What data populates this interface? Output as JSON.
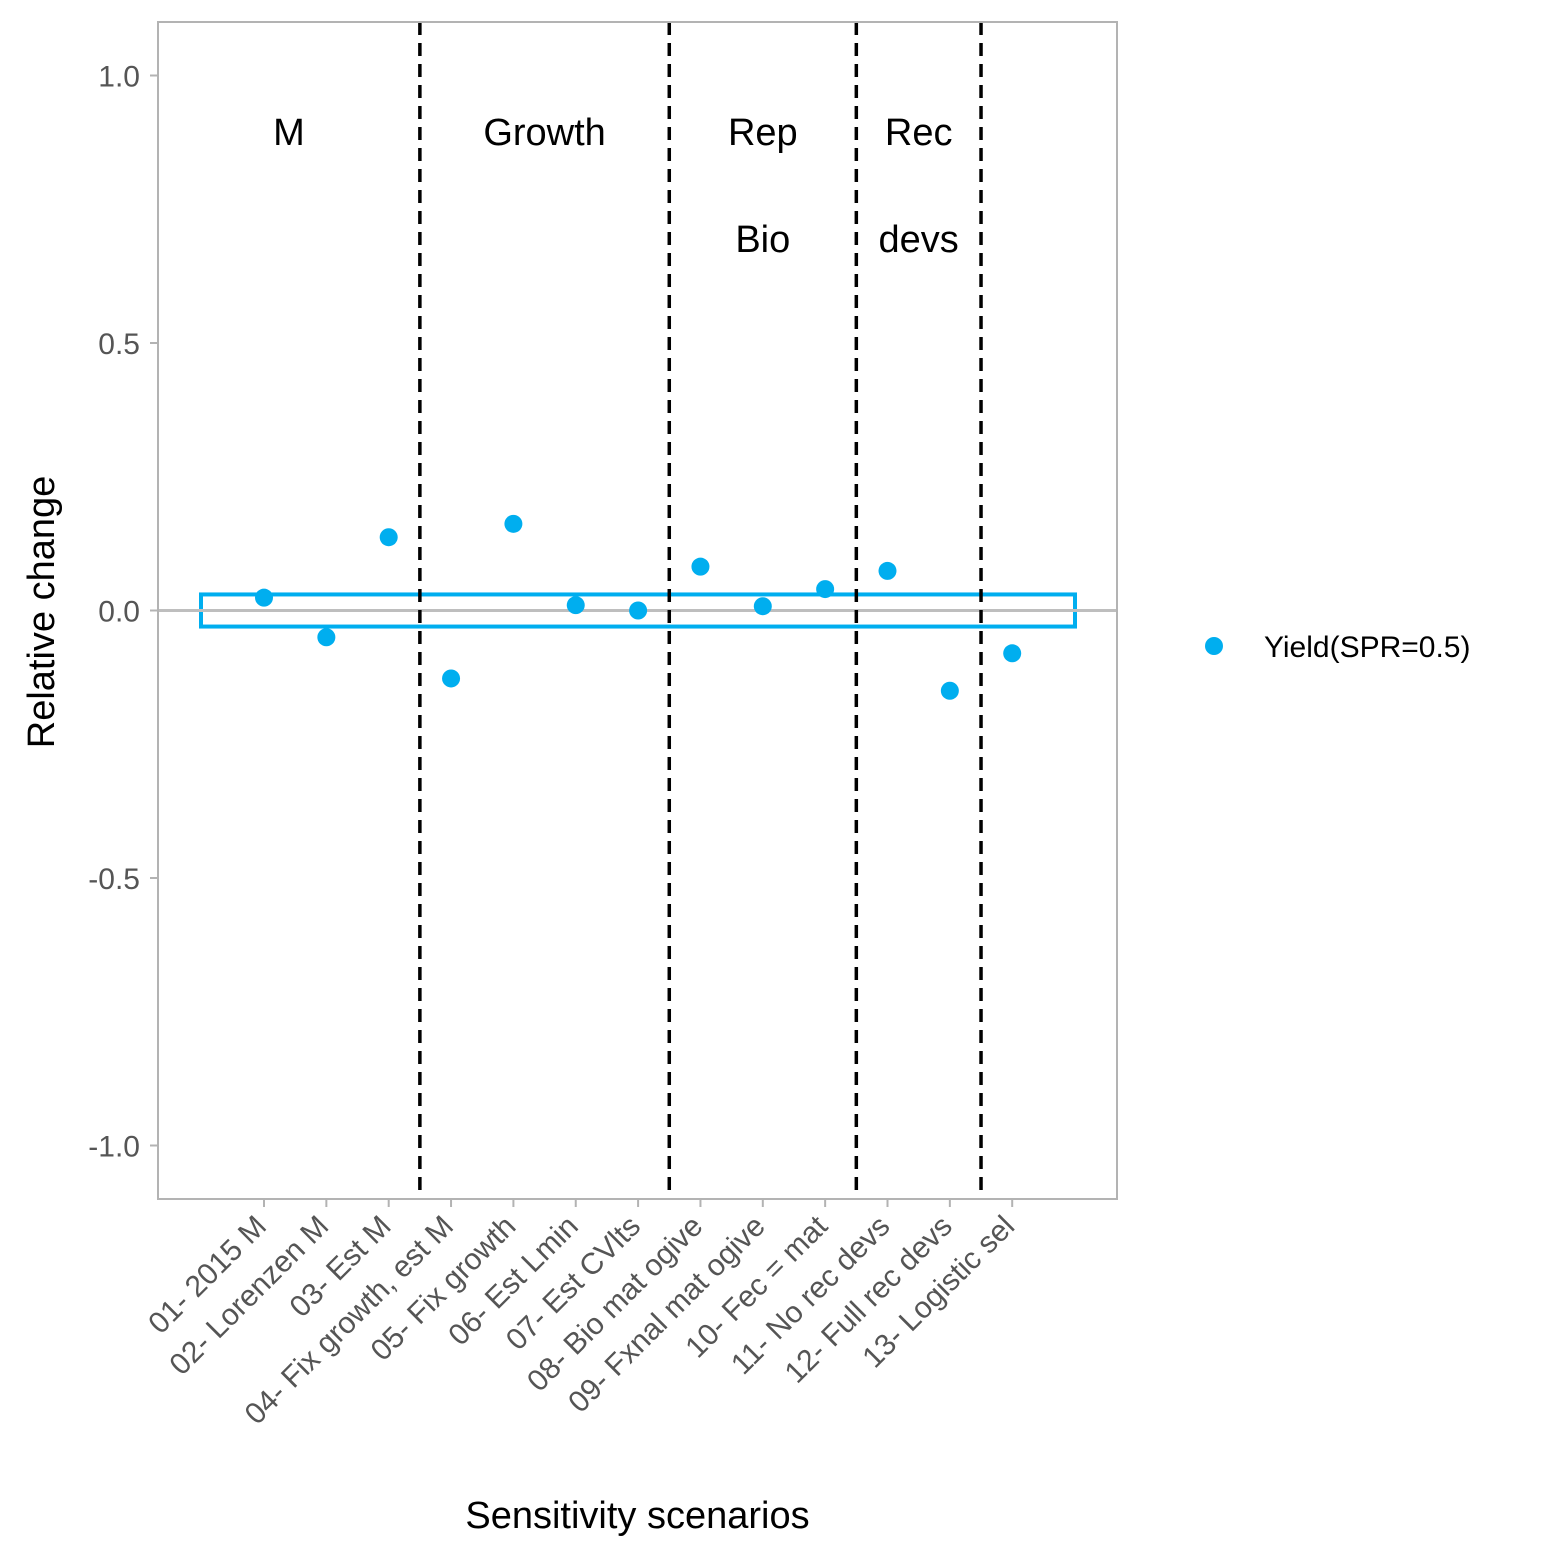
{
  "chart_data": {
    "type": "scatter",
    "xlabel": "Sensitivity scenarios",
    "ylabel": "Relative change",
    "ylim": [
      -1.1,
      1.1
    ],
    "y_ticks": [
      1.0,
      0.5,
      0.0,
      -0.5,
      -1.0
    ],
    "y_tick_labels": [
      "1.0",
      "0.5",
      "0.0",
      "-0.5",
      "-1.0"
    ],
    "categories": [
      "01- 2015 M",
      "02- Lorenzen M",
      "03- Est M",
      "04- Fix growth, est M",
      "05- Fix growth",
      "06- Est Lmin",
      "07- Est CVlts",
      "08- Bio mat ogive",
      "09- Fxnal mat ogive",
      "10- Fec = mat",
      "11- No rec devs",
      "12- Full rec devs",
      "13- Logistic sel"
    ],
    "series": [
      {
        "name": "Yield(SPR=0.5)",
        "color": "#00AEEF",
        "values": [
          0.024,
          -0.05,
          0.137,
          -0.127,
          0.162,
          0.01,
          0.0,
          0.082,
          0.008,
          0.04,
          0.074,
          -0.15,
          -0.08
        ]
      }
    ],
    "reference_line": {
      "y": 0.0,
      "color": "#BEBEBE"
    },
    "band": {
      "y_min": -0.03,
      "y_max": 0.03,
      "color": "#00AEEF"
    },
    "dividers_after_category_index": [
      2,
      6,
      9,
      11
    ],
    "groups": [
      {
        "lines": [
          "M"
        ]
      },
      {
        "lines": [
          "Growth"
        ]
      },
      {
        "lines": [
          "Rep",
          "Bio"
        ]
      },
      {
        "lines": [
          "Rec",
          "devs"
        ]
      }
    ],
    "legend_position": "right",
    "grid": false
  }
}
